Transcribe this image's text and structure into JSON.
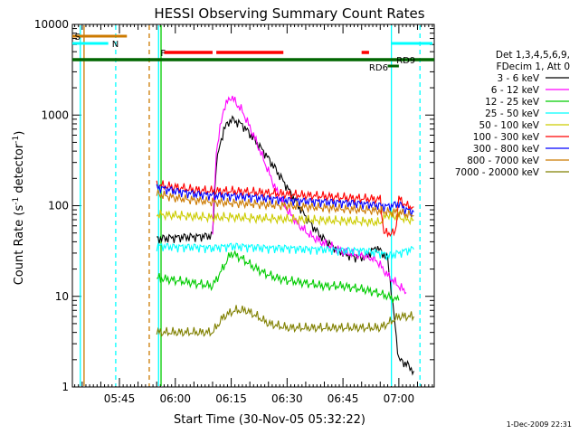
{
  "chart_data": {
    "type": "line",
    "title": "HESSI Observing Summary Count Rates",
    "xlabel": "Start Time (30-Nov-05 05:32:22)",
    "ylabel": "Count Rate (s⁻¹ detector⁻¹)",
    "ylabel_main": "Count Rate (s",
    "ylabel_mid": " detector",
    "ylabel_end": ")",
    "ylabel_sup": "-1",
    "y_scale": "log",
    "ylim": [
      1,
      10000
    ],
    "xlim": [
      "05:32:22",
      "07:09:30"
    ],
    "x_ticks": [
      "05:45",
      "06:00",
      "06:15",
      "06:30",
      "06:45",
      "07:00"
    ],
    "y_ticks": [
      "1",
      "10",
      "100",
      "1000",
      "10000"
    ],
    "grid": false,
    "legend_header": [
      "Det 1,3,4,5,6,9,",
      "FDecim 1, Att 0"
    ],
    "series": [
      {
        "name": "3 - 6 keV",
        "color": "#000000",
        "x": [
          "05:55",
          "05:58",
          "06:02",
          "06:08",
          "06:10",
          "06:11",
          "06:13",
          "06:15",
          "06:18",
          "06:21",
          "06:24",
          "06:27",
          "06:30",
          "06:33",
          "06:36",
          "06:39",
          "06:42",
          "06:45",
          "06:48",
          "06:51",
          "06:54",
          "06:57",
          "07:00",
          "07:02",
          "07:04"
        ],
        "values": [
          43,
          44,
          45,
          46,
          47,
          300,
          700,
          900,
          780,
          550,
          380,
          250,
          160,
          100,
          66,
          46,
          36,
          30,
          27,
          27,
          35,
          26,
          2,
          1.8,
          1.5
        ]
      },
      {
        "name": "6 - 12 keV",
        "color": "#ff00ff",
        "x": [
          "06:10",
          "06:11",
          "06:13",
          "06:15",
          "06:18",
          "06:21",
          "06:24",
          "06:27",
          "06:30",
          "06:33",
          "06:36",
          "06:39",
          "06:42",
          "06:45",
          "06:48",
          "06:51",
          "06:54",
          "06:57",
          "07:00",
          "07:02"
        ],
        "values": [
          50,
          400,
          1200,
          1600,
          1100,
          600,
          300,
          150,
          90,
          62,
          48,
          40,
          35,
          31,
          29,
          28,
          25,
          17,
          13,
          11
        ]
      },
      {
        "name": "12 - 25 keV",
        "color": "#00cc00",
        "x": [
          "05:55",
          "06:00",
          "06:05",
          "06:10",
          "06:12",
          "06:15",
          "06:18",
          "06:21",
          "06:24",
          "06:27",
          "06:30",
          "06:35",
          "06:40",
          "06:45",
          "06:50",
          "06:54",
          "06:57",
          "07:00"
        ],
        "values": [
          16,
          15,
          14,
          13,
          18,
          30,
          26,
          21,
          18,
          16,
          15,
          14,
          13,
          13,
          12,
          11,
          10,
          9
        ]
      },
      {
        "name": "25 - 50 keV",
        "color": "#00ffff",
        "x": [
          "05:55",
          "06:00",
          "06:05",
          "06:10",
          "06:15",
          "06:20",
          "06:25",
          "06:30",
          "06:35",
          "06:40",
          "06:45",
          "06:50",
          "06:55",
          "06:57",
          "07:00",
          "07:02",
          "07:04"
        ],
        "values": [
          36,
          35,
          35,
          34,
          36,
          35,
          34,
          34,
          33,
          33,
          32,
          32,
          30,
          28,
          30,
          32,
          33
        ]
      },
      {
        "name": "50 - 100 keV",
        "color": "#cccc00",
        "x": [
          "05:55",
          "06:00",
          "06:05",
          "06:10",
          "06:15",
          "06:20",
          "06:25",
          "06:30",
          "06:35",
          "06:40",
          "06:45",
          "06:50",
          "06:55",
          "06:57",
          "07:00",
          "07:02",
          "07:04"
        ],
        "values": [
          80,
          78,
          76,
          74,
          75,
          73,
          72,
          71,
          70,
          69,
          68,
          67,
          65,
          80,
          75,
          70,
          70
        ]
      },
      {
        "name": "100 - 300 keV",
        "color": "#ff0000",
        "x": [
          "05:55",
          "06:00",
          "06:05",
          "06:10",
          "06:15",
          "06:20",
          "06:25",
          "06:30",
          "06:35",
          "06:40",
          "06:45",
          "06:50",
          "06:55",
          "06:56",
          "06:59",
          "07:00",
          "07:02",
          "07:04"
        ],
        "values": [
          170,
          160,
          150,
          145,
          145,
          142,
          138,
          134,
          130,
          127,
          123,
          120,
          118,
          50,
          50,
          120,
          100,
          97
        ]
      },
      {
        "name": "300 - 800 keV",
        "color": "#0000ff",
        "x": [
          "05:55",
          "06:00",
          "06:05",
          "06:10",
          "06:15",
          "06:20",
          "06:25",
          "06:30",
          "06:35",
          "06:40",
          "06:45",
          "06:50",
          "06:55",
          "06:57",
          "07:00",
          "07:02",
          "07:04"
        ],
        "values": [
          160,
          145,
          135,
          130,
          128,
          125,
          120,
          115,
          112,
          110,
          108,
          105,
          100,
          98,
          105,
          90,
          85
        ]
      },
      {
        "name": "800 - 7000 keV",
        "color": "#cc7a00",
        "x": [
          "05:55",
          "06:00",
          "06:05",
          "06:10",
          "06:15",
          "06:20",
          "06:25",
          "06:30",
          "06:35",
          "06:40",
          "06:45",
          "06:50",
          "06:55",
          "06:57",
          "07:00",
          "07:02",
          "07:04"
        ],
        "values": [
          135,
          122,
          115,
          110,
          107,
          105,
          102,
          100,
          97,
          95,
          92,
          90,
          88,
          85,
          85,
          80,
          78
        ]
      },
      {
        "name": "7000 - 20000 keV",
        "color": "#808000",
        "x": [
          "05:55",
          "06:00",
          "06:05",
          "06:10",
          "06:13",
          "06:16",
          "06:19",
          "06:22",
          "06:25",
          "06:30",
          "06:35",
          "06:40",
          "06:45",
          "06:50",
          "06:55",
          "06:57",
          "07:00",
          "07:02",
          "07:04"
        ],
        "values": [
          4,
          4,
          4,
          4,
          6,
          7,
          7,
          6,
          5,
          4.5,
          4.5,
          4.5,
          4.5,
          4.5,
          4.5,
          5,
          6,
          6,
          6
        ]
      }
    ],
    "status_bars": [
      {
        "label": "S",
        "color": "#cc7a00",
        "start": "05:32:22",
        "end": "05:47"
      },
      {
        "label": "N",
        "color": "#00ffff",
        "start": "05:32:22",
        "end": "05:42"
      },
      {
        "label": "F",
        "color": "#ff0000",
        "start": "05:57",
        "end": "06:53"
      },
      {
        "label": "RD9",
        "color": "#006600",
        "start": "05:32:22",
        "end": "07:09:30"
      },
      {
        "label": "RD6",
        "color": "#006600",
        "start": "06:57",
        "end": "07:00"
      }
    ],
    "annotations": [
      "S",
      "N",
      "F",
      "RD9",
      "RD6"
    ]
  },
  "footer": {
    "timestamp": "1-Dec-2009 22:31"
  }
}
